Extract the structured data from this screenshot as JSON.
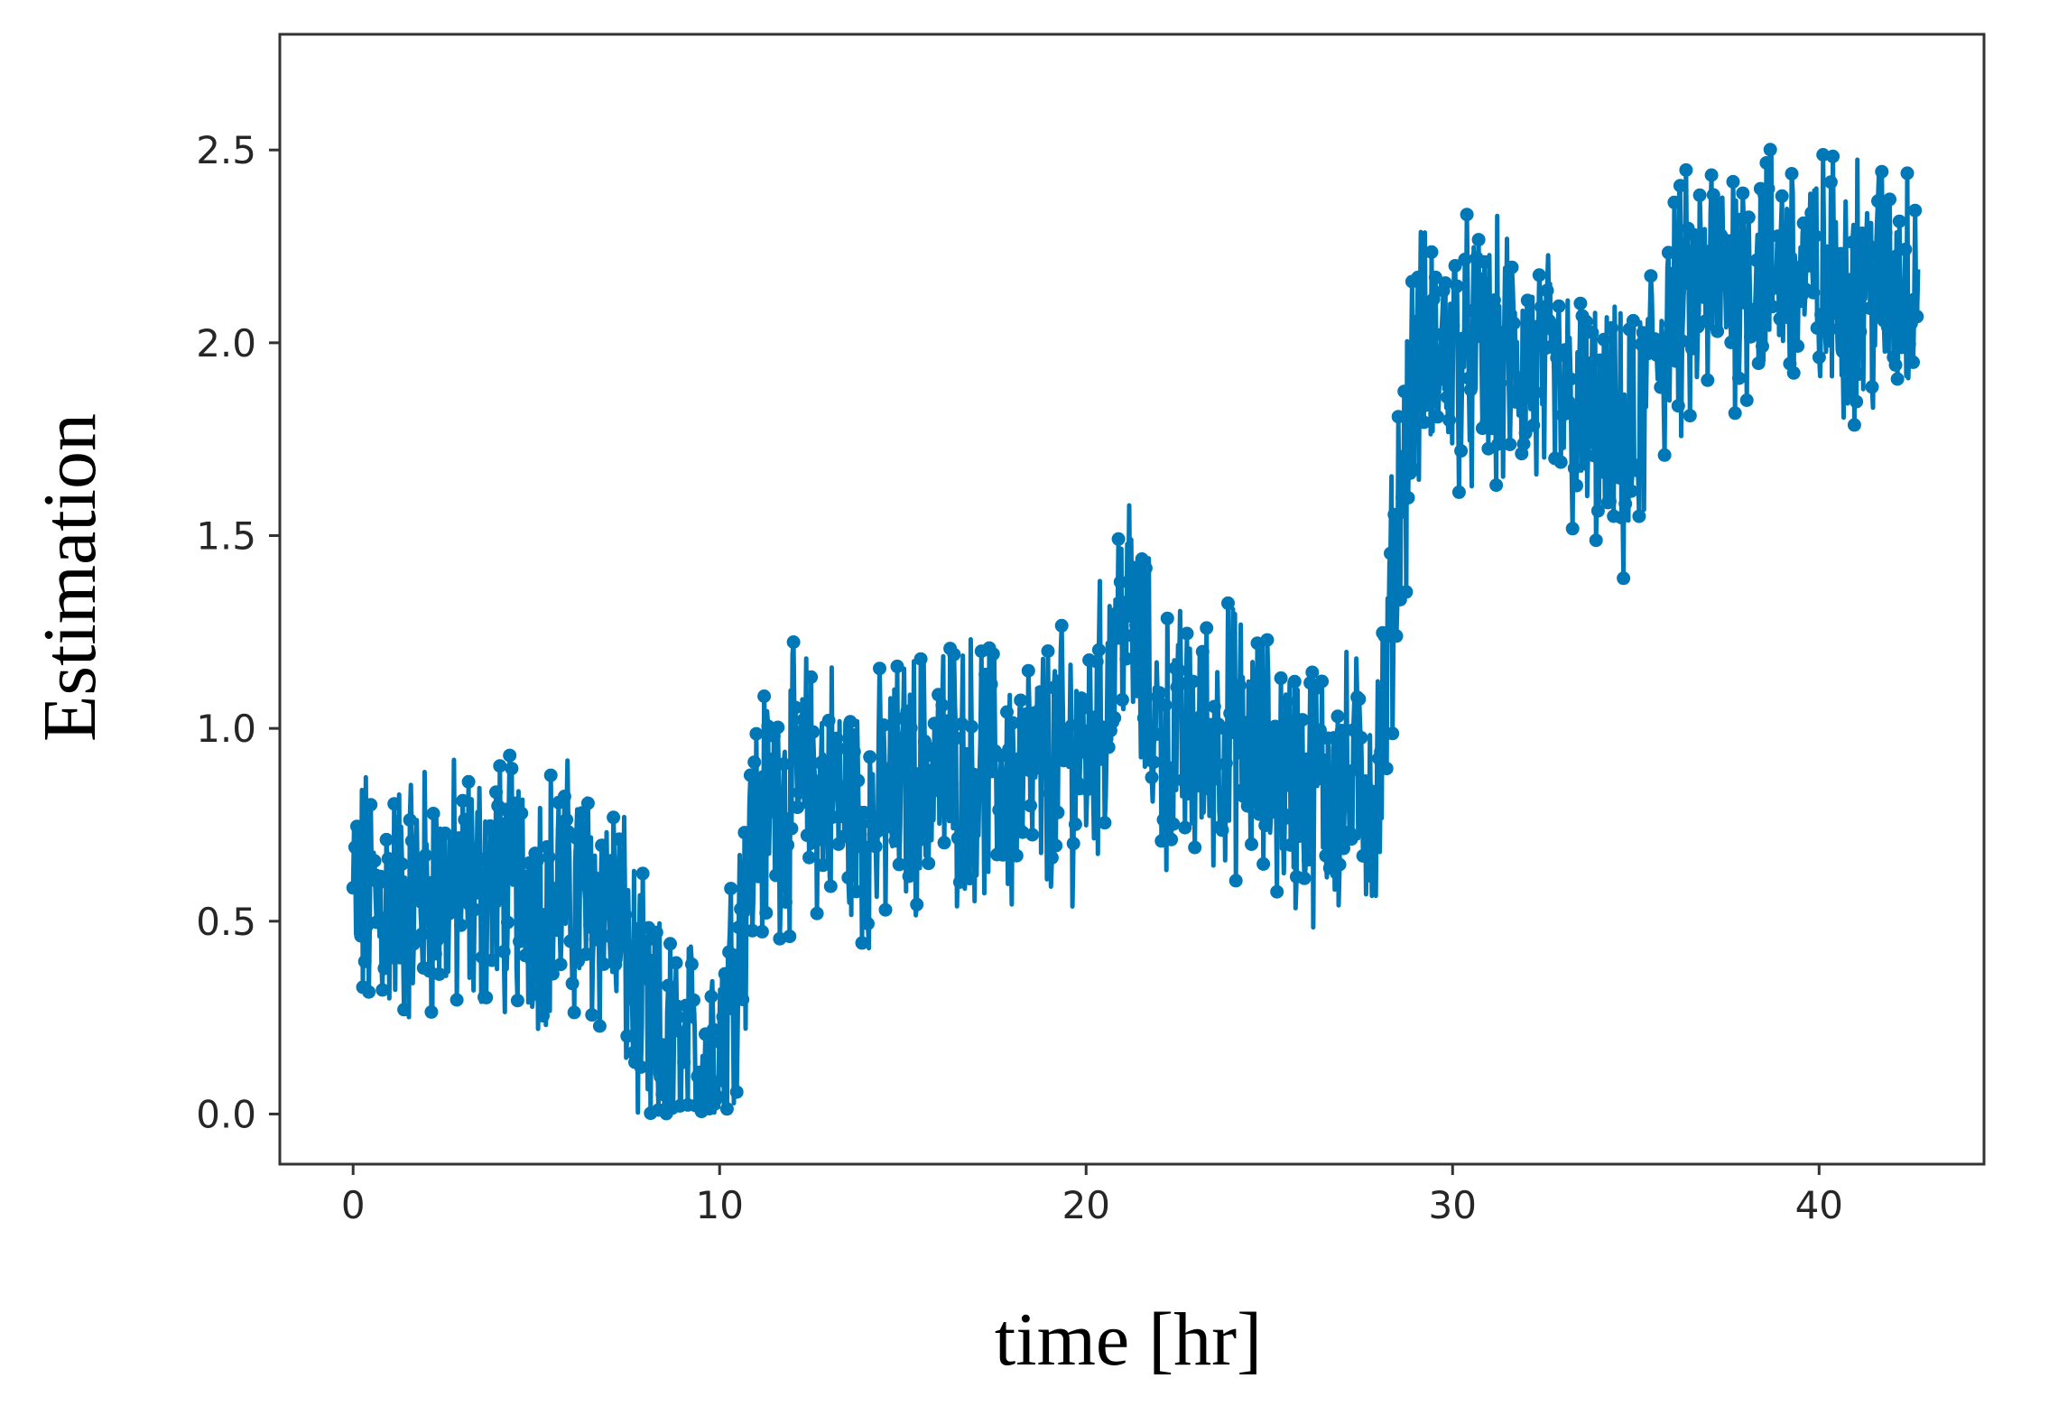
{
  "colors": {
    "series": "#0077b6",
    "frame": "#333333",
    "background": "#ffffff"
  },
  "chart_data": {
    "type": "line",
    "markers": true,
    "xlabel": "time [hr]",
    "ylabel": "Estimation",
    "xlim": [
      -2,
      44.5
    ],
    "ylim": [
      -0.13,
      2.8
    ],
    "x_ticks": [
      0,
      10,
      20,
      30,
      40
    ],
    "x_tick_labels": [
      "0",
      "10",
      "20",
      "30",
      "40"
    ],
    "y_ticks": [
      0.0,
      0.5,
      1.0,
      1.5,
      2.0,
      2.5
    ],
    "y_tick_labels": [
      "0.0",
      "0.5",
      "1.0",
      "1.5",
      "2.0",
      "2.5"
    ],
    "grid": false,
    "legend": false,
    "series": [
      {
        "x": [
          0,
          1,
          2,
          3,
          4,
          5,
          6,
          7,
          7.5,
          8,
          9,
          10,
          10.5,
          11,
          12,
          13,
          14,
          15,
          16,
          17,
          18,
          19,
          20,
          20.5,
          21,
          21.5,
          22,
          23,
          24,
          25,
          26,
          27,
          28,
          28.5,
          29,
          30,
          31,
          32,
          33,
          34,
          35,
          35.5,
          36,
          37,
          38,
          39,
          40,
          41,
          42,
          42.7
        ],
        "y": [
          0.55,
          0.55,
          0.58,
          0.57,
          0.6,
          0.58,
          0.57,
          0.55,
          0.4,
          0.2,
          0.1,
          0.2,
          0.45,
          0.75,
          0.85,
          0.85,
          0.75,
          0.85,
          0.9,
          0.9,
          0.85,
          0.9,
          0.95,
          1.05,
          1.35,
          1.15,
          0.98,
          0.95,
          0.98,
          0.9,
          0.85,
          0.85,
          0.85,
          1.55,
          1.95,
          1.98,
          1.95,
          1.95,
          1.85,
          1.75,
          1.7,
          2.0,
          2.05,
          2.15,
          2.2,
          2.2,
          2.15,
          2.15,
          2.15,
          2.2
        ]
      }
    ]
  }
}
